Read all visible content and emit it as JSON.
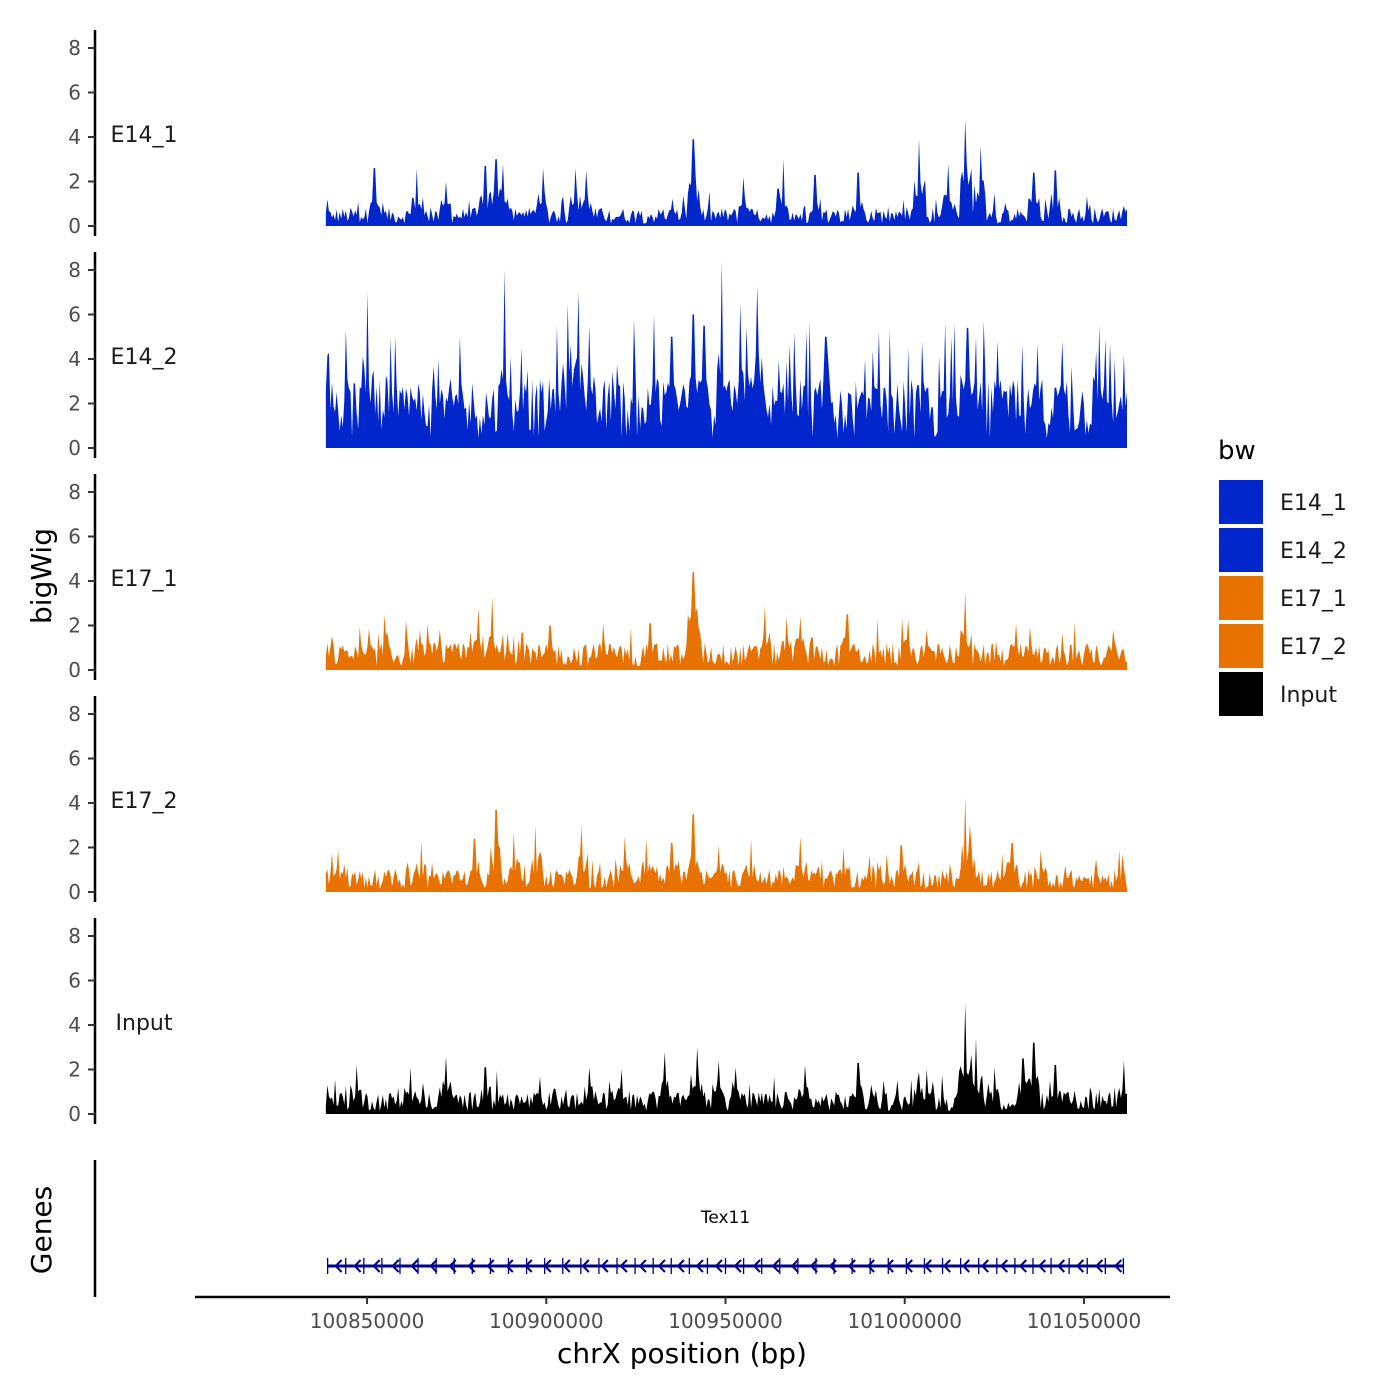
{
  "chart_data": {
    "type": "area",
    "title": "",
    "ylabel": "bigWig",
    "xlabel": "chrX position (bp)",
    "xlim": [
      100802000,
      101074000
    ],
    "data_range": [
      100838500,
      101062000
    ],
    "ylim": [
      0,
      8.8
    ],
    "y_ticks": [
      0,
      2,
      4,
      6,
      8
    ],
    "x_ticks": [
      100850000,
      100900000,
      100950000,
      101000000,
      101050000
    ],
    "x_tick_labels": [
      "100850000",
      "100900000",
      "100950000",
      "101000000",
      "101050000"
    ],
    "grid": false,
    "legend": {
      "title": "bw",
      "position": "right",
      "entries": [
        {
          "label": "E14_1",
          "color": "#0026cc"
        },
        {
          "label": "E14_2",
          "color": "#0026cc"
        },
        {
          "label": "E17_1",
          "color": "#e87200"
        },
        {
          "label": "E17_2",
          "color": "#e87200"
        },
        {
          "label": "Input",
          "color": "#000000"
        }
      ]
    },
    "series": [
      {
        "name": "E14_1",
        "color": "#0026cc",
        "baseline": 0.45,
        "peaks": [
          [
            100838800,
            1.2
          ],
          [
            100852000,
            2.6
          ],
          [
            100864000,
            2.6
          ],
          [
            100872000,
            2.0
          ],
          [
            100883000,
            2.7
          ],
          [
            100886000,
            3.0
          ],
          [
            100888000,
            2.8
          ],
          [
            100899000,
            2.6
          ],
          [
            100908000,
            2.6
          ],
          [
            100911000,
            2.5
          ],
          [
            100941000,
            3.9
          ],
          [
            100955000,
            2.2
          ],
          [
            100966000,
            3.0
          ],
          [
            100975000,
            2.3
          ],
          [
            100987000,
            2.4
          ],
          [
            101004000,
            3.9
          ],
          [
            101012000,
            2.8
          ],
          [
            101017000,
            4.8
          ],
          [
            101021000,
            3.6
          ],
          [
            101036000,
            2.4
          ],
          [
            101042000,
            2.5
          ],
          [
            101061000,
            0.9
          ]
        ]
      },
      {
        "name": "E14_2",
        "color": "#0026cc",
        "baseline": 1.7,
        "peaks": [
          [
            100838800,
            2.5
          ],
          [
            100850000,
            7.0
          ],
          [
            100858000,
            5.0
          ],
          [
            100870000,
            4.0
          ],
          [
            100876000,
            5.0
          ],
          [
            100888500,
            8.0
          ],
          [
            100893000,
            4.5
          ],
          [
            100903000,
            5.5
          ],
          [
            100906000,
            6.5
          ],
          [
            100909000,
            7.0
          ],
          [
            100912000,
            5.5
          ],
          [
            100930000,
            6.0
          ],
          [
            100935000,
            5.0
          ],
          [
            100941000,
            6.0
          ],
          [
            100944000,
            5.5
          ],
          [
            100949000,
            8.4
          ],
          [
            100954000,
            6.5
          ],
          [
            100959000,
            7.3
          ],
          [
            100968000,
            4.6
          ],
          [
            100978000,
            5.0
          ],
          [
            100989000,
            4.0
          ],
          [
            101005000,
            4.8
          ],
          [
            101013000,
            5.0
          ],
          [
            101017500,
            5.4
          ],
          [
            101020000,
            5.0
          ],
          [
            101026000,
            4.8
          ],
          [
            101037000,
            4.7
          ],
          [
            101044000,
            4.8
          ],
          [
            101056000,
            4.9
          ],
          [
            101061000,
            4.2
          ]
        ]
      },
      {
        "name": "E17_1",
        "color": "#e87200",
        "baseline": 0.65,
        "peaks": [
          [
            100838800,
            1.2
          ],
          [
            100855000,
            2.5
          ],
          [
            100867000,
            2.1
          ],
          [
            100881000,
            2.8
          ],
          [
            100885000,
            3.3
          ],
          [
            100901000,
            2.0
          ],
          [
            100916000,
            2.1
          ],
          [
            100929000,
            2.1
          ],
          [
            100941000,
            4.4
          ],
          [
            100942000,
            2.8
          ],
          [
            100961000,
            2.9
          ],
          [
            100967000,
            2.4
          ],
          [
            100971000,
            2.4
          ],
          [
            100984000,
            2.5
          ],
          [
            101001000,
            2.3
          ],
          [
            101006000,
            1.8
          ],
          [
            101017000,
            3.5
          ],
          [
            101031000,
            2.1
          ],
          [
            101058000,
            1.8
          ],
          [
            101061000,
            0.9
          ]
        ]
      },
      {
        "name": "E17_2",
        "color": "#e87200",
        "baseline": 0.55,
        "peaks": [
          [
            100838800,
            1.0
          ],
          [
            100842000,
            1.9
          ],
          [
            100865000,
            2.3
          ],
          [
            100880000,
            2.4
          ],
          [
            100886000,
            3.7
          ],
          [
            100891000,
            2.7
          ],
          [
            100897000,
            3.0
          ],
          [
            100910000,
            3.0
          ],
          [
            100922000,
            2.5
          ],
          [
            100928000,
            2.4
          ],
          [
            100935000,
            2.2
          ],
          [
            100941000,
            3.5
          ],
          [
            100948000,
            2.1
          ],
          [
            100957000,
            2.4
          ],
          [
            100971000,
            2.5
          ],
          [
            100983000,
            2.0
          ],
          [
            100999000,
            2.1
          ],
          [
            101017000,
            4.3
          ],
          [
            101018000,
            3.0
          ],
          [
            101030000,
            2.2
          ],
          [
            101038000,
            1.9
          ],
          [
            101060000,
            1.9
          ]
        ]
      },
      {
        "name": "Input",
        "color": "#000000",
        "baseline": 0.55,
        "peaks": [
          [
            100838800,
            1.3
          ],
          [
            100847000,
            2.2
          ],
          [
            100862000,
            2.1
          ],
          [
            100872000,
            2.6
          ],
          [
            100883000,
            2.1
          ],
          [
            100912000,
            2.1
          ],
          [
            100921000,
            2.0
          ],
          [
            100933000,
            2.8
          ],
          [
            100942000,
            3.0
          ],
          [
            100948000,
            2.4
          ],
          [
            100953000,
            2.1
          ],
          [
            100972000,
            2.2
          ],
          [
            100987000,
            2.3
          ],
          [
            101006000,
            2.0
          ],
          [
            101017000,
            5.0
          ],
          [
            101020000,
            3.4
          ],
          [
            101025000,
            2.1
          ],
          [
            101033000,
            2.5
          ],
          [
            101036000,
            3.2
          ],
          [
            101042000,
            2.2
          ],
          [
            101061000,
            2.4
          ]
        ]
      }
    ],
    "genes": {
      "title": "Genes",
      "items": [
        {
          "name": "Tex11",
          "start": 100839000,
          "end": 101061000,
          "strand": "-",
          "color": "#00008b"
        }
      ]
    }
  }
}
